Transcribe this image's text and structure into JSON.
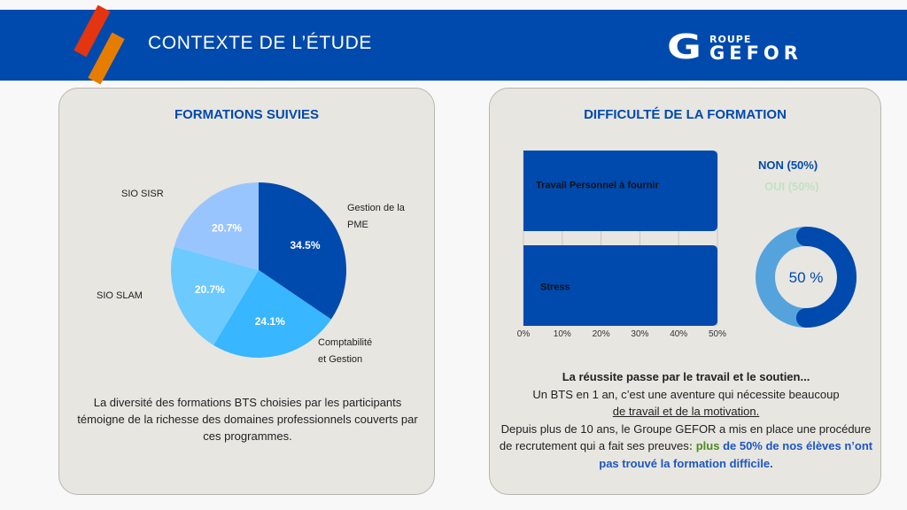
{
  "header": {
    "title": "CONTEXTE DE L’ÉTUDE",
    "logo_top": "ROUPE",
    "logo_main": "GEFOR",
    "logo_initial": "G"
  },
  "colors": {
    "header_bg": "#004aad",
    "accent_red": "#e3350f",
    "accent_orange": "#e77d00",
    "panel_title": "#004aad"
  },
  "left_panel": {
    "title": "FORMATIONS SUIVIES",
    "description": "La diversité des formations BTS choisies par les participants témoigne de la richesse des domaines professionnels couverts par ces programmes."
  },
  "right_panel": {
    "title": "DIFFICULTÉ DE LA FORMATION",
    "legend": {
      "non": "NON (50%)",
      "oui": "OUI (50%)"
    },
    "donut_center": "50 %",
    "message": {
      "heading": "La réussite passe par le travail et le soutien...",
      "line1": "Un BTS en 1 an, c’est une aventure qui nécessite beaucoup",
      "line2": "de travail et de la motivation. ",
      "line3": "Depuis plus de 10 ans, le Groupe GEFOR  a mis en place une procédure de recrutement qui a fait ses preuves",
      "colon": ":",
      "highlight_green": " plus",
      "highlight_blue": "de 50% de nos élèves n’ont pas trouvé la formation difficile",
      "end": "."
    }
  },
  "chart_data": [
    {
      "type": "pie",
      "title": "FORMATIONS SUIVIES",
      "categories": [
        "Gestion de la PME",
        "Comptabilité et Gestion",
        "SIO SLAM",
        "SIO SISR"
      ],
      "values": [
        34.5,
        24.1,
        20.7,
        20.7
      ],
      "value_labels": [
        "34.5%",
        "24.1%",
        "20.7%",
        "20.7%"
      ],
      "label_lines": [
        [
          "Gestion de la",
          "PME"
        ],
        [
          "Comptabilité",
          "et Gestion"
        ],
        [
          "SIO SLAM"
        ],
        [
          "SIO SISR"
        ]
      ],
      "colors": [
        "#004aad",
        "#38b6ff",
        "#6ccaff",
        "#99c5ff"
      ]
    },
    {
      "type": "bar",
      "orientation": "horizontal",
      "title": "DIFFICULTÉ DE LA FORMATION",
      "categories": [
        "Travail Personnel à fournir",
        "Stress"
      ],
      "values": [
        50,
        50
      ],
      "xlim": [
        0,
        50
      ],
      "xticks": [
        "0%",
        "10%",
        "20%",
        "30%",
        "40%",
        "50%"
      ],
      "tick_values": [
        0,
        10,
        20,
        30,
        40,
        50
      ],
      "grid": true,
      "color": "#004aad"
    },
    {
      "type": "pie",
      "subtype": "donut",
      "categories": [
        "NON",
        "OUI"
      ],
      "values": [
        50,
        50
      ],
      "legend": [
        "NON (50%)",
        "OUI (50%)"
      ],
      "center_label": "50 %",
      "colors": [
        "#004aad",
        "#55a3dc"
      ],
      "legend_colors": [
        "#004aad",
        "#c1e1c1"
      ]
    }
  ]
}
